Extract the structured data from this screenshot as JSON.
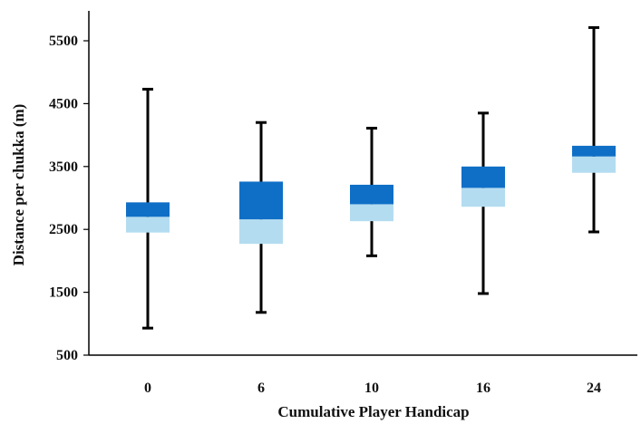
{
  "chart_data": {
    "type": "boxplot",
    "title": "",
    "xlabel": "Cumulative Player Handicap",
    "ylabel": "Distance per chukka (m)",
    "ylim": [
      500,
      6000
    ],
    "yticks": [
      500,
      1500,
      2500,
      3500,
      4500,
      5500
    ],
    "ytick_labels": [
      "500",
      "1500",
      "2500",
      "3500",
      "4500",
      "5500"
    ],
    "grid": false,
    "legend": "none",
    "categories": [
      "0",
      "6",
      "10",
      "16",
      "24"
    ],
    "boxes": [
      {
        "category": "0",
        "min": 930,
        "q1": 2450,
        "median": 2700,
        "q3": 2930,
        "max": 4730
      },
      {
        "category": "6",
        "min": 1180,
        "q1": 2270,
        "median": 2660,
        "q3": 3260,
        "max": 4200
      },
      {
        "category": "10",
        "min": 2080,
        "q1": 2630,
        "median": 2900,
        "q3": 3210,
        "max": 4110
      },
      {
        "category": "16",
        "min": 1480,
        "q1": 2860,
        "median": 3160,
        "q3": 3500,
        "max": 4350
      },
      {
        "category": "24",
        "min": 2460,
        "q1": 3400,
        "median": 3660,
        "q3": 3830,
        "max": 5710
      }
    ],
    "colors": {
      "upper_box": "#0f6fc6",
      "lower_box": "#b4dcf0",
      "whisker": "#000000",
      "axis": "#000000",
      "text": "#111111"
    }
  }
}
